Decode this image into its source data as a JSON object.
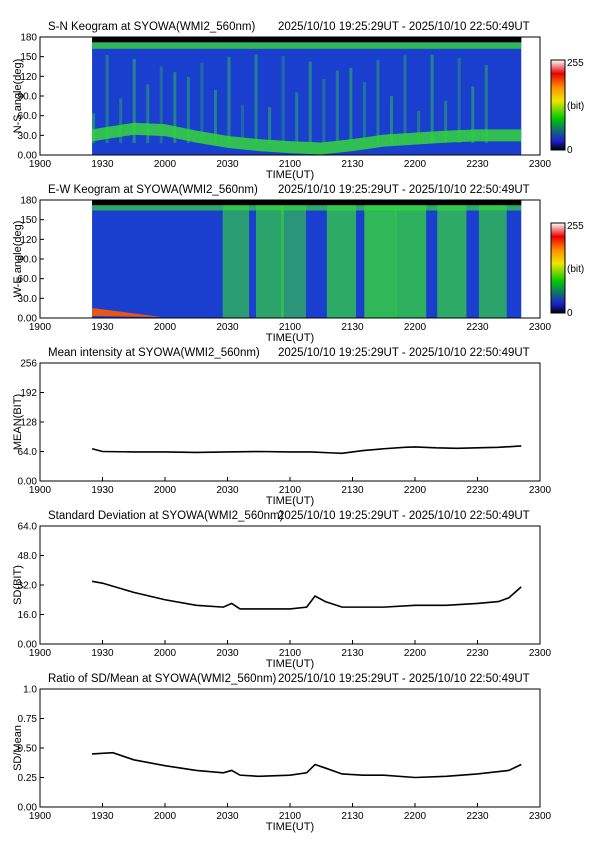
{
  "time_range": "2025/10/10 19:25:29UT - 2025/10/10 22:50:49UT",
  "colors": {
    "keogram_background": "#1a3fcf",
    "auroral_arc": "#35d63a",
    "trace": "#000000",
    "colorbar": [
      "#000000",
      "#1e1ed2",
      "#00c800",
      "#f0e600",
      "#ff8c00",
      "#e60000",
      "#ffffff"
    ]
  },
  "chart_data": [
    {
      "type": "heatmap",
      "title": "S-N Keogram at SYOWA(WMI2_560nm)",
      "xlabel": "TIME(UT)",
      "ylabel": "N-S angle(deg)",
      "xlim": [
        "1900",
        "2300"
      ],
      "ylim": [
        0,
        180
      ],
      "x_ticks": [
        "1900",
        "1930",
        "2000",
        "2030",
        "2100",
        "2130",
        "2200",
        "2230",
        "2300"
      ],
      "y_ticks": [
        "0.00",
        "30.0",
        "60.0",
        "90.0",
        "120",
        "150",
        "180"
      ],
      "colorbar": {
        "min": "0",
        "max": "255",
        "unit": "(bit)"
      },
      "data_start": "1925",
      "data_end": "2251",
      "arc": [
        {
          "t": "1925",
          "angle": 30
        },
        {
          "t": "1945",
          "angle": 40
        },
        {
          "t": "2000",
          "angle": 38
        },
        {
          "t": "2015",
          "angle": 28
        },
        {
          "t": "2030",
          "angle": 20
        },
        {
          "t": "2045",
          "angle": 15
        },
        {
          "t": "2100",
          "angle": 12
        },
        {
          "t": "2115",
          "angle": 10
        },
        {
          "t": "2130",
          "angle": 15
        },
        {
          "t": "2145",
          "angle": 22
        },
        {
          "t": "2200",
          "angle": 25
        },
        {
          "t": "2215",
          "angle": 28
        },
        {
          "t": "2230",
          "angle": 30
        },
        {
          "t": "2251",
          "angle": 30
        }
      ]
    },
    {
      "type": "heatmap",
      "title": "E-W Keogram at SYOWA(WMI2_560nm)",
      "xlabel": "TIME(UT)",
      "ylabel": "W-E angle(deg)",
      "xlim": [
        "1900",
        "2300"
      ],
      "ylim": [
        0,
        180
      ],
      "x_ticks": [
        "1900",
        "1930",
        "2000",
        "2030",
        "2100",
        "2130",
        "2200",
        "2230",
        "2300"
      ],
      "y_ticks": [
        "0.00",
        "30.0",
        "60.0",
        "90.0",
        "120",
        "150",
        "180"
      ],
      "colorbar": {
        "min": "0",
        "max": "255",
        "unit": "(bit)"
      },
      "data_start": "1925",
      "data_end": "2251",
      "bright_bands": [
        {
          "t": "2032",
          "strength": 0.6
        },
        {
          "t": "2048",
          "strength": 0.7
        },
        {
          "t": "2100",
          "strength": 0.5
        },
        {
          "t": "2122",
          "strength": 0.8
        },
        {
          "t": "2140",
          "strength": 1.0
        },
        {
          "t": "2155",
          "strength": 0.9
        },
        {
          "t": "2215",
          "strength": 0.8
        },
        {
          "t": "2235",
          "strength": 0.7
        }
      ]
    },
    {
      "type": "line",
      "title": "Mean intensity at SYOWA(WMI2_560nm)",
      "xlabel": "TIME(UT)",
      "ylabel": "MEAN(BIT)",
      "xlim": [
        "1900",
        "2300"
      ],
      "ylim": [
        0,
        256
      ],
      "x_ticks": [
        "1900",
        "1930",
        "2000",
        "2030",
        "2100",
        "2130",
        "2200",
        "2230",
        "2300"
      ],
      "y_ticks": [
        "0.00",
        "64.0",
        "128",
        "192",
        "256"
      ],
      "series": [
        {
          "x": [
            "1925",
            "1930",
            "1945",
            "2000",
            "2015",
            "2030",
            "2045",
            "2100",
            "2110",
            "2120",
            "2125",
            "2135",
            "2145",
            "2155",
            "2200",
            "2210",
            "2220",
            "2230",
            "2240",
            "2251"
          ],
          "values": [
            70,
            64,
            63,
            63,
            62,
            63,
            64,
            63,
            63,
            61,
            60,
            66,
            70,
            73,
            74,
            72,
            71,
            72,
            73,
            76
          ]
        }
      ]
    },
    {
      "type": "line",
      "title": "Standard Deviation at SYOWA(WMI2_560nm)",
      "xlabel": "TIME(UT)",
      "ylabel": "SD(BIT)",
      "xlim": [
        "1900",
        "2300"
      ],
      "ylim": [
        0,
        64
      ],
      "x_ticks": [
        "1900",
        "1930",
        "2000",
        "2030",
        "2100",
        "2130",
        "2200",
        "2230",
        "2300"
      ],
      "y_ticks": [
        "0.00",
        "16.0",
        "32.0",
        "48.0",
        "64.0"
      ],
      "series": [
        {
          "x": [
            "1925",
            "1930",
            "1945",
            "2000",
            "2015",
            "2028",
            "2032",
            "2036",
            "2045",
            "2100",
            "2108",
            "2112",
            "2117",
            "2125",
            "2135",
            "2145",
            "2200",
            "2215",
            "2230",
            "2240",
            "2245",
            "2251"
          ],
          "values": [
            34,
            33,
            28,
            24,
            21,
            20,
            22,
            19,
            19,
            19,
            20,
            26,
            23,
            20,
            20,
            20,
            21,
            21,
            22,
            23,
            25,
            31
          ]
        }
      ]
    },
    {
      "type": "line",
      "title": "Ratio of SD/Mean at SYOWA(WMI2_560nm)",
      "xlabel": "TIME(UT)",
      "ylabel": "SD/Mean",
      "xlim": [
        "1900",
        "2300"
      ],
      "ylim": [
        0,
        1.0
      ],
      "x_ticks": [
        "1900",
        "1930",
        "2000",
        "2030",
        "2100",
        "2130",
        "2200",
        "2230",
        "2300"
      ],
      "y_ticks": [
        "0.00",
        "0.25",
        "0.50",
        "0.75",
        "1.0"
      ],
      "series": [
        {
          "x": [
            "1925",
            "1935",
            "1945",
            "2000",
            "2015",
            "2028",
            "2032",
            "2036",
            "2045",
            "2100",
            "2108",
            "2112",
            "2117",
            "2125",
            "2135",
            "2145",
            "2200",
            "2215",
            "2230",
            "2245",
            "2251"
          ],
          "values": [
            0.45,
            0.46,
            0.4,
            0.35,
            0.31,
            0.29,
            0.31,
            0.27,
            0.26,
            0.27,
            0.29,
            0.36,
            0.33,
            0.28,
            0.27,
            0.27,
            0.25,
            0.26,
            0.28,
            0.31,
            0.36
          ]
        }
      ]
    }
  ]
}
